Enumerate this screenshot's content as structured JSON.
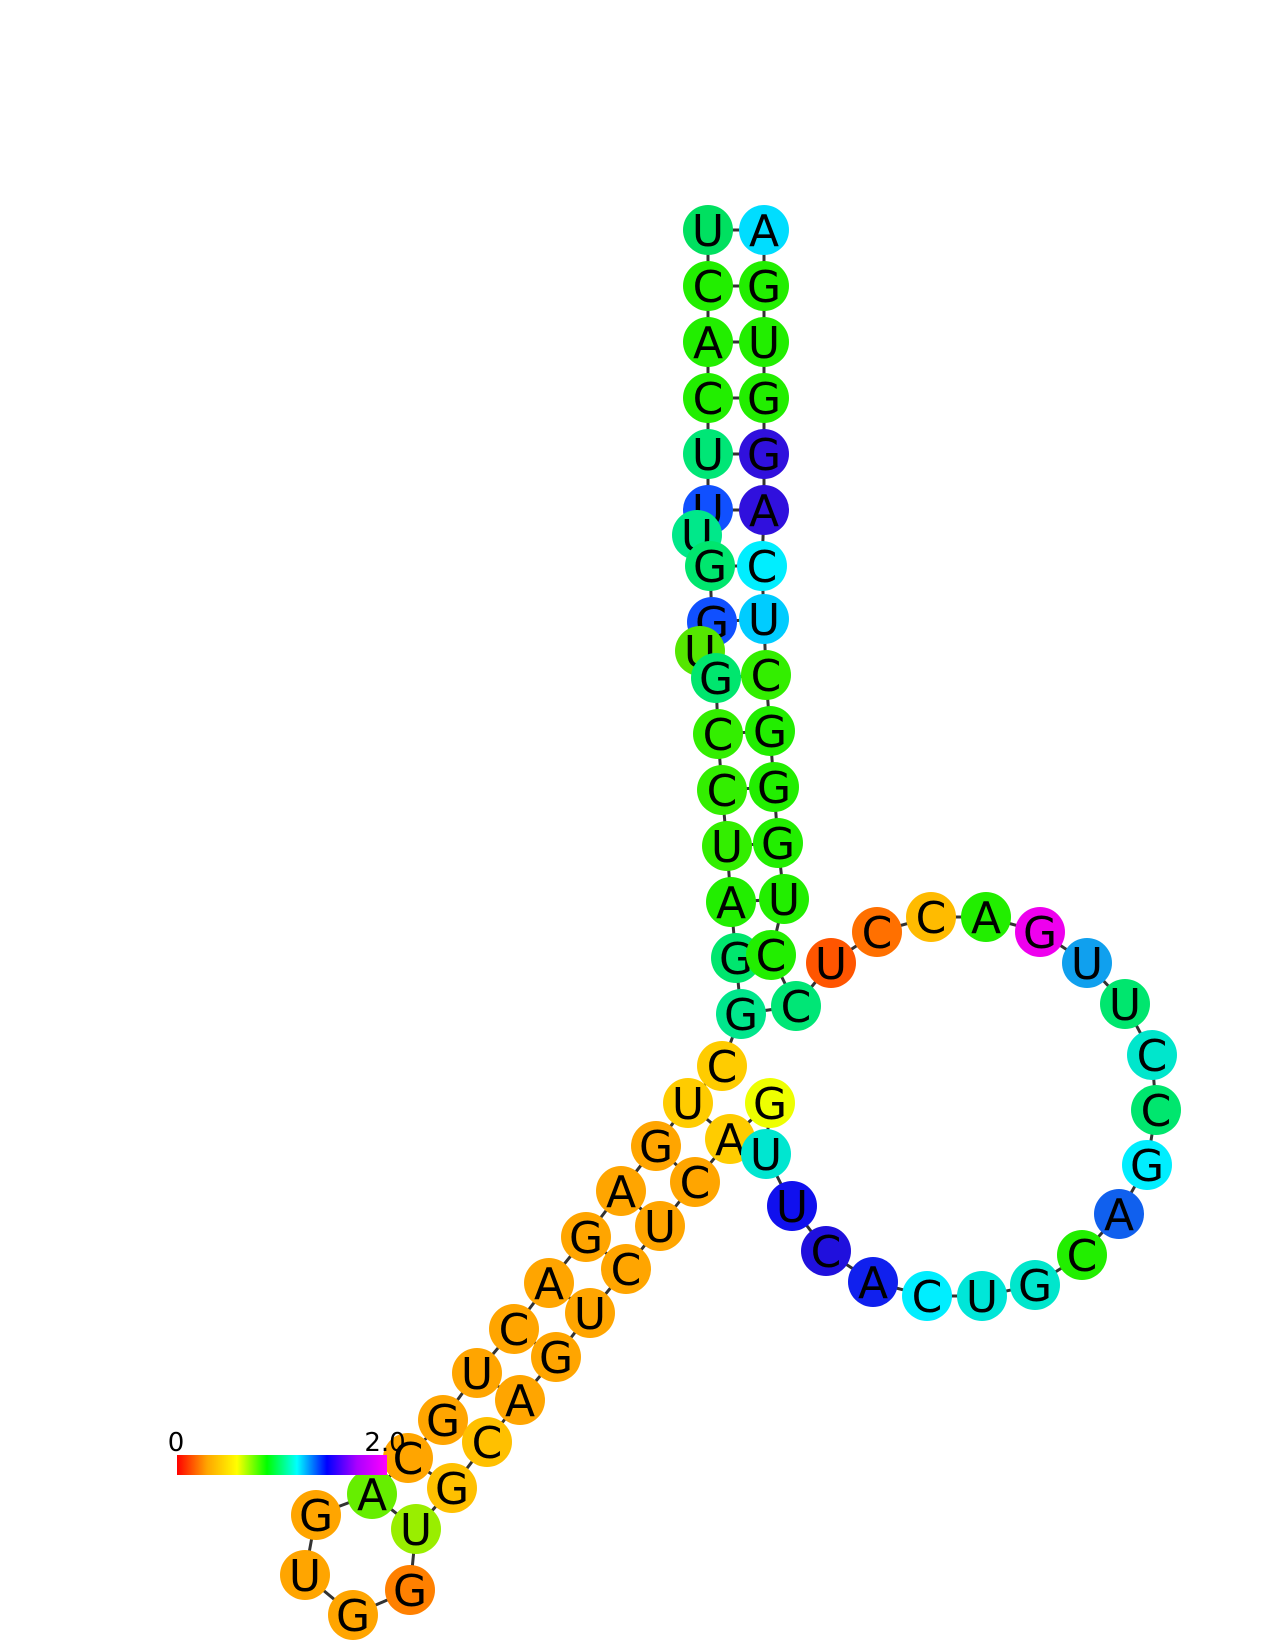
{
  "scale": {
    "min_label": "0",
    "max_label": "2.0",
    "colors": [
      "#ff0000",
      "#ffa500",
      "#ffff00",
      "#00ff00",
      "#00ffff",
      "#0000ff",
      "#aa00ff",
      "#ff00ff"
    ]
  },
  "nucleotides": [
    {
      "id": 1,
      "base": "U",
      "color": "#00e060"
    },
    {
      "id": 2,
      "base": "C",
      "color": "#22ee00"
    },
    {
      "id": 3,
      "base": "A",
      "color": "#22ee00"
    },
    {
      "id": 4,
      "base": "C",
      "color": "#22ee00"
    },
    {
      "id": 5,
      "base": "U",
      "color": "#00e676"
    },
    {
      "id": 6,
      "base": "U",
      "color": "#1050ff"
    },
    {
      "id": 7,
      "base": "U",
      "color": "#00e88a"
    },
    {
      "id": 8,
      "base": "G",
      "color": "#00e66e"
    },
    {
      "id": 9,
      "base": "G",
      "color": "#1050ff"
    },
    {
      "id": 10,
      "base": "U",
      "color": "#55e600"
    },
    {
      "id": 11,
      "base": "G",
      "color": "#00e66e"
    },
    {
      "id": 12,
      "base": "C",
      "color": "#33ee00"
    },
    {
      "id": 13,
      "base": "C",
      "color": "#33ee00"
    },
    {
      "id": 14,
      "base": "U",
      "color": "#33ee00"
    },
    {
      "id": 15,
      "base": "A",
      "color": "#22ee00"
    },
    {
      "id": 16,
      "base": "G",
      "color": "#00e66e"
    },
    {
      "id": 17,
      "base": "G",
      "color": "#00e68c"
    },
    {
      "id": 18,
      "base": "C",
      "color": "#ffcc00"
    },
    {
      "id": 19,
      "base": "U",
      "color": "#ffcc00"
    },
    {
      "id": 20,
      "base": "G",
      "color": "#ffa500"
    },
    {
      "id": 21,
      "base": "A",
      "color": "#ffa500"
    },
    {
      "id": 22,
      "base": "G",
      "color": "#ffa500"
    },
    {
      "id": 23,
      "base": "A",
      "color": "#ffa500"
    },
    {
      "id": 24,
      "base": "C",
      "color": "#ffa500"
    },
    {
      "id": 25,
      "base": "U",
      "color": "#ffa500"
    },
    {
      "id": 26,
      "base": "G",
      "color": "#ffa500"
    },
    {
      "id": 27,
      "base": "C",
      "color": "#ffa500"
    },
    {
      "id": 28,
      "base": "A",
      "color": "#66ee00"
    },
    {
      "id": 29,
      "base": "G",
      "color": "#ffa500"
    },
    {
      "id": 30,
      "base": "U",
      "color": "#ffa500"
    },
    {
      "id": 31,
      "base": "G",
      "color": "#ffa500"
    },
    {
      "id": 32,
      "base": "G",
      "color": "#ff8000"
    },
    {
      "id": 33,
      "base": "U",
      "color": "#99ee00"
    },
    {
      "id": 34,
      "base": "G",
      "color": "#ffc000"
    },
    {
      "id": 35,
      "base": "C",
      "color": "#ffc000"
    },
    {
      "id": 36,
      "base": "A",
      "color": "#ffa500"
    },
    {
      "id": 37,
      "base": "G",
      "color": "#ffa500"
    },
    {
      "id": 38,
      "base": "U",
      "color": "#ffa500"
    },
    {
      "id": 39,
      "base": "C",
      "color": "#ffa500"
    },
    {
      "id": 40,
      "base": "U",
      "color": "#ffa500"
    },
    {
      "id": 41,
      "base": "C",
      "color": "#ffa500"
    },
    {
      "id": 42,
      "base": "A",
      "color": "#ffcc00"
    },
    {
      "id": 43,
      "base": "G",
      "color": "#eeff00"
    },
    {
      "id": 44,
      "base": "U",
      "color": "#00e6d0"
    },
    {
      "id": 45,
      "base": "U",
      "color": "#1010ee"
    },
    {
      "id": 46,
      "base": "C",
      "color": "#2010dd"
    },
    {
      "id": 47,
      "base": "A",
      "color": "#1020ee"
    },
    {
      "id": 48,
      "base": "C",
      "color": "#00eeff"
    },
    {
      "id": 49,
      "base": "U",
      "color": "#00e6d8"
    },
    {
      "id": 50,
      "base": "G",
      "color": "#00e6cc"
    },
    {
      "id": 51,
      "base": "C",
      "color": "#22ee00"
    },
    {
      "id": 52,
      "base": "A",
      "color": "#1060ee"
    },
    {
      "id": 53,
      "base": "G",
      "color": "#00eeff"
    },
    {
      "id": 54,
      "base": "C",
      "color": "#00e66e"
    },
    {
      "id": 55,
      "base": "C",
      "color": "#00e6cc"
    },
    {
      "id": 56,
      "base": "U",
      "color": "#00e66e"
    },
    {
      "id": 57,
      "base": "U",
      "color": "#10a0ee"
    },
    {
      "id": 58,
      "base": "G",
      "color": "#ee00ee"
    },
    {
      "id": 59,
      "base": "A",
      "color": "#22ee00"
    },
    {
      "id": 60,
      "base": "C",
      "color": "#ffbb00"
    },
    {
      "id": 61,
      "base": "C",
      "color": "#ff7000"
    },
    {
      "id": 62,
      "base": "U",
      "color": "#ff5500"
    },
    {
      "id": 63,
      "base": "C",
      "color": "#00e676"
    },
    {
      "id": 64,
      "base": "C",
      "color": "#22ee00"
    },
    {
      "id": 65,
      "base": "U",
      "color": "#22ee00"
    },
    {
      "id": 66,
      "base": "G",
      "color": "#22ee00"
    },
    {
      "id": 67,
      "base": "G",
      "color": "#22ee00"
    },
    {
      "id": 68,
      "base": "G",
      "color": "#22ee00"
    },
    {
      "id": 69,
      "base": "C",
      "color": "#33ee00"
    },
    {
      "id": 70,
      "base": "U",
      "color": "#00ccff"
    },
    {
      "id": 71,
      "base": "C",
      "color": "#00eeff"
    },
    {
      "id": 72,
      "base": "A",
      "color": "#3010dd"
    },
    {
      "id": 73,
      "base": "G",
      "color": "#3010dd"
    },
    {
      "id": 74,
      "base": "G",
      "color": "#22ee00"
    },
    {
      "id": 75,
      "base": "U",
      "color": "#22ee00"
    },
    {
      "id": 76,
      "base": "G",
      "color": "#22ee00"
    },
    {
      "id": 77,
      "base": "A",
      "color": "#00ddff"
    }
  ]
}
